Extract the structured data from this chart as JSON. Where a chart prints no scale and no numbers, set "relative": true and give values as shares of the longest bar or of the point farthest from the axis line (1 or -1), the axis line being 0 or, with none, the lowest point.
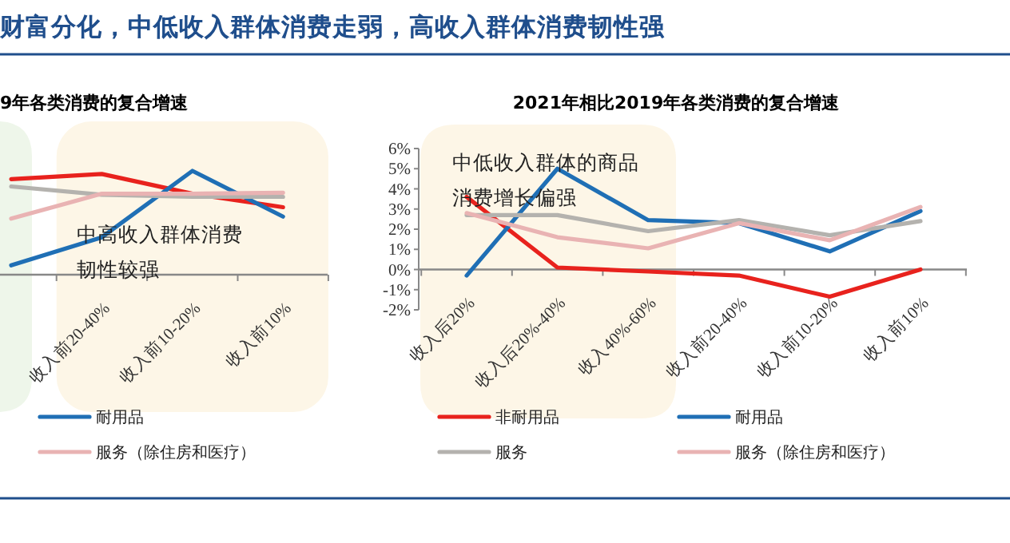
{
  "chart_data": [
    {
      "type": "line",
      "title": "9年各类消费的复合增速",
      "relative": true,
      "legend": "bottom",
      "categories": [
        null,
        "收入前20-40%",
        "收入前10-20%",
        "收入前10%"
      ],
      "series": [
        {
          "color": "#e8221d",
          "values": [
            0.92,
            0.97,
            0.78,
            0.65
          ]
        },
        {
          "name": "耐用品",
          "color": "#1f6fb5",
          "values": [
            0.09,
            0.36,
            1,
            0.56
          ]
        },
        {
          "color": "#b4b2ae",
          "values": [
            0.85,
            0.77,
            0.75,
            0.75
          ]
        },
        {
          "name": "服务（除住房和医疗）",
          "color": "#e9b3b3",
          "values": [
            0.54,
            0.78,
            0.78,
            0.79
          ]
        }
      ],
      "bands": [
        {
          "axis": "x",
          "from": "收入前20-40%",
          "to": "收入前10%",
          "color": "#fdf6e7"
        }
      ],
      "annotations": [
        "财富分化，中低收入群体消费走弱，高收入群体消费韧性强",
        "中高收入群体消费韧性较强"
      ]
    },
    {
      "type": "line",
      "title": "2021年相比2019年各类消费的复合增速",
      "legend": "bottom",
      "categories": [
        "收入后20%",
        "收入后20%-40%",
        "收入40%-60%",
        "收入前20-40%",
        "收入前10-20%",
        "收入前10%"
      ],
      "ylim": [
        -2,
        6
      ],
      "yticks": [
        {
          "value": -2,
          "label": "-2%"
        },
        {
          "value": -1,
          "label": "-1%"
        },
        {
          "value": 0,
          "label": "0%"
        },
        {
          "value": 1,
          "label": "1%"
        },
        {
          "value": 2,
          "label": "2%"
        },
        {
          "value": 3,
          "label": "3%"
        },
        {
          "value": 4,
          "label": "4%"
        },
        {
          "value": 5,
          "label": "5%"
        },
        {
          "value": 6,
          "label": "6%"
        }
      ],
      "series": [
        {
          "name": "非耐用品",
          "color": "#e8221d",
          "values": [
            3.6,
            0.1,
            -0.1,
            -0.3,
            -1.35,
            0
          ]
        },
        {
          "name": "耐用品",
          "color": "#1f6fb5",
          "values": [
            -0.3,
            5.0,
            2.45,
            2.3,
            0.9,
            2.9
          ]
        },
        {
          "name": "服务",
          "color": "#b4b2ae",
          "values": [
            2.7,
            2.7,
            1.9,
            2.45,
            1.7,
            2.4
          ]
        },
        {
          "name": "服务（除住房和医疗）",
          "color": "#e9b3b3",
          "values": [
            2.8,
            1.6,
            1.05,
            2.3,
            1.45,
            3.1
          ]
        }
      ],
      "annotations": [
        "中低收入群体的商品消费增长偏强"
      ]
    }
  ]
}
